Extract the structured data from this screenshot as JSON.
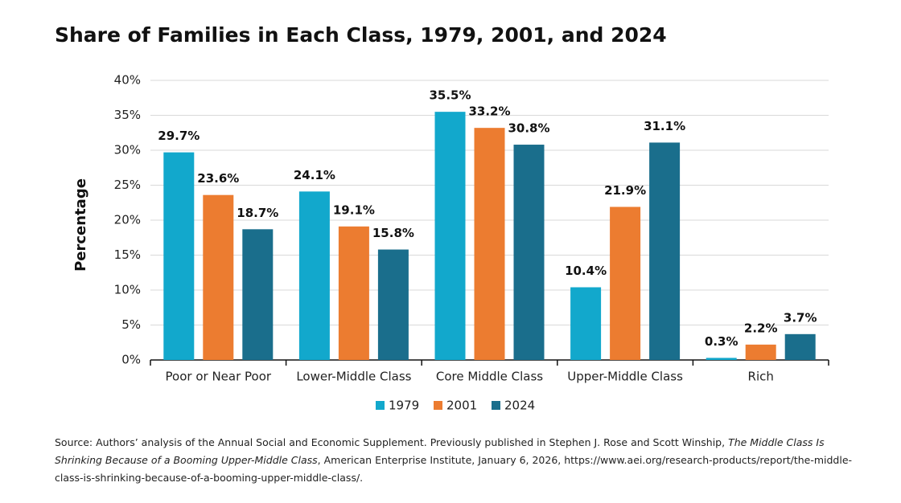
{
  "chart_data": {
    "type": "bar",
    "title": "Share of Families in Each Class, 1979, 2001, and 2024",
    "y_label": "Percentage",
    "categories": [
      "Poor or Near Poor",
      "Lower-Middle Class",
      "Core Middle Class",
      "Upper-Middle Class",
      "Rich"
    ],
    "series": [
      {
        "name": "1979",
        "color": "#12a8cc",
        "values": [
          29.7,
          24.1,
          35.5,
          10.4,
          0.3
        ],
        "value_labels": [
          "29.7%",
          "24.1%",
          "35.5%",
          "10.4%",
          "0.3%"
        ]
      },
      {
        "name": "2001",
        "color": "#ec7c30",
        "values": [
          23.6,
          19.1,
          33.2,
          21.9,
          2.2
        ],
        "value_labels": [
          "23.6%",
          "19.1%",
          "33.2%",
          "21.9%",
          "2.2%"
        ]
      },
      {
        "name": "2024",
        "color": "#1a6e8c",
        "values": [
          18.7,
          15.8,
          30.8,
          31.1,
          3.7
        ],
        "value_labels": [
          "18.7%",
          "15.8%",
          "30.8%",
          "31.1%",
          "3.7%"
        ]
      }
    ],
    "ylim": [
      0,
      40
    ],
    "yticks": [
      {
        "value": 0,
        "label": "0%"
      },
      {
        "value": 5,
        "label": "5%"
      },
      {
        "value": 10,
        "label": "10%"
      },
      {
        "value": 15,
        "label": "15%"
      },
      {
        "value": 20,
        "label": "20%"
      },
      {
        "value": 25,
        "label": "25%"
      },
      {
        "value": 30,
        "label": "30%"
      },
      {
        "value": 35,
        "label": "35%"
      },
      {
        "value": 40,
        "label": "40%"
      }
    ],
    "grid": true,
    "legend": "bottom",
    "source": [
      "Source: Authors’ analysis of the Annual Social and Economic Supplement. Previously published in Stephen J. Rose and Scott Winship, ",
      "The Middle Class Is Shrinking Because of a Booming Upper-Middle Class",
      ", American Enterprise Institute, January 6, 2026, https://www.aei.org/research-products/report/the-middle-class-is-shrinking-because-of-a-booming-upper-middle-class/."
    ]
  }
}
